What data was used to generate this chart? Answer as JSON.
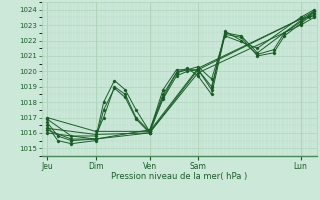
{
  "title": "",
  "xlabel": "Pression niveau de la mer( hPa )",
  "ylim": [
    1014.5,
    1024.5
  ],
  "yticks": [
    1015,
    1016,
    1017,
    1018,
    1019,
    1020,
    1021,
    1022,
    1023,
    1024
  ],
  "bg_color": "#cce8d8",
  "grid_color_major": "#b0d4bc",
  "grid_color_minor": "#b8dcc8",
  "line_color": "#1a5c28",
  "x_tick_labels": [
    "Jeu",
    "Dim",
    "Ven",
    "Sam",
    "Lun"
  ],
  "x_tick_positions": [
    0.02,
    0.2,
    0.4,
    0.58,
    0.96
  ],
  "xlim": [
    0.0,
    1.02
  ],
  "series": [
    [
      0.02,
      1016.7,
      0.06,
      1015.8,
      0.11,
      1015.5,
      0.2,
      1015.6,
      0.23,
      1018.0,
      0.27,
      1019.4,
      0.31,
      1018.8,
      0.35,
      1017.5,
      0.4,
      1016.1,
      0.45,
      1018.5,
      0.5,
      1019.9,
      0.54,
      1020.2,
      0.58,
      1019.7,
      0.63,
      1018.5,
      0.68,
      1022.4,
      0.74,
      1022.2,
      0.8,
      1021.0,
      0.86,
      1021.2,
      0.9,
      1022.3,
      0.96,
      1023.1,
      0.99,
      1023.5,
      1.01,
      1023.7
    ],
    [
      0.02,
      1016.5,
      0.06,
      1015.5,
      0.11,
      1015.3,
      0.2,
      1015.5,
      0.23,
      1017.5,
      0.27,
      1018.9,
      0.31,
      1018.3,
      0.35,
      1016.9,
      0.4,
      1016.0,
      0.45,
      1018.2,
      0.5,
      1019.7,
      0.54,
      1020.0,
      0.58,
      1020.1,
      0.63,
      1018.8,
      0.68,
      1022.6,
      0.74,
      1022.0,
      0.8,
      1021.1,
      0.86,
      1021.4,
      0.9,
      1022.5,
      0.96,
      1023.2,
      0.99,
      1023.6,
      1.01,
      1023.9
    ],
    [
      0.02,
      1016.9,
      0.11,
      1015.8,
      0.2,
      1015.8,
      0.23,
      1017.0,
      0.27,
      1019.0,
      0.31,
      1018.5,
      0.35,
      1017.0,
      0.4,
      1016.1,
      0.45,
      1018.8,
      0.5,
      1020.1,
      0.58,
      1020.1,
      0.63,
      1019.0,
      0.68,
      1022.5,
      0.74,
      1022.3,
      0.8,
      1021.2,
      0.96,
      1023.3,
      1.01,
      1023.8
    ],
    [
      0.02,
      1016.2,
      0.11,
      1015.6,
      0.2,
      1015.6,
      0.4,
      1016.2,
      0.45,
      1018.3,
      0.5,
      1019.9,
      0.58,
      1020.3,
      0.63,
      1019.5,
      0.68,
      1022.3,
      0.8,
      1021.5,
      0.96,
      1023.5,
      1.01,
      1024.0
    ],
    [
      0.02,
      1016.0,
      0.2,
      1015.6,
      0.4,
      1016.0,
      0.58,
      1020.1,
      0.96,
      1023.4,
      1.01,
      1023.9
    ],
    [
      0.02,
      1017.0,
      0.2,
      1016.1,
      0.4,
      1016.1,
      0.58,
      1020.2,
      0.96,
      1023.4,
      1.01,
      1023.6
    ],
    [
      0.02,
      1016.3,
      0.2,
      1015.9,
      0.4,
      1016.0,
      0.58,
      1019.9,
      0.96,
      1023.0,
      1.01,
      1023.5
    ]
  ]
}
